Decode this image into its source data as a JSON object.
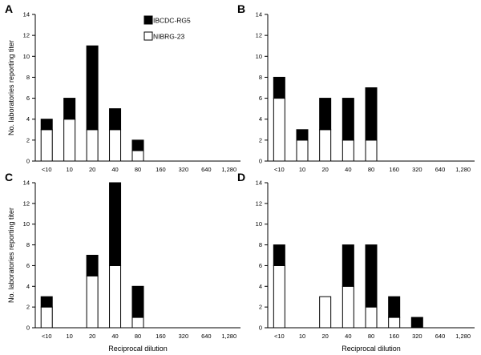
{
  "chart_data": [
    {
      "type": "bar",
      "panel": "A",
      "categories": [
        "<10",
        "10",
        "20",
        "40",
        "80",
        "160",
        "320",
        "640",
        "1,280"
      ],
      "series": [
        {
          "name": "NIBRG-23",
          "color": "#ffffff",
          "values": [
            3,
            4,
            3,
            3,
            1,
            0,
            0,
            0,
            0
          ]
        },
        {
          "name": "IBCDC-RG5",
          "color": "#000000",
          "values": [
            1,
            2,
            8,
            2,
            1,
            0,
            0,
            0,
            0
          ]
        }
      ],
      "ylabel": "No. laboratories reporting titer",
      "xlabel": "",
      "ylim": [
        0,
        14
      ],
      "yticks": [
        0,
        2,
        4,
        6,
        8,
        10,
        12,
        14
      ],
      "legend": "top-center"
    },
    {
      "type": "bar",
      "panel": "B",
      "categories": [
        "<10",
        "10",
        "20",
        "40",
        "80",
        "160",
        "320",
        "640",
        "1,280"
      ],
      "series": [
        {
          "name": "NIBRG-23",
          "color": "#ffffff",
          "values": [
            6,
            2,
            3,
            2,
            2,
            0,
            0,
            0,
            0
          ]
        },
        {
          "name": "IBCDC-RG5",
          "color": "#000000",
          "values": [
            2,
            1,
            3,
            4,
            5,
            0,
            0,
            0,
            0
          ]
        }
      ],
      "ylabel": "",
      "xlabel": "",
      "ylim": [
        0,
        14
      ],
      "yticks": [
        0,
        2,
        4,
        6,
        8,
        10,
        12,
        14
      ]
    },
    {
      "type": "bar",
      "panel": "C",
      "categories": [
        "<10",
        "10",
        "20",
        "40",
        "80",
        "160",
        "320",
        "640",
        "1,280"
      ],
      "series": [
        {
          "name": "NIBRG-23",
          "color": "#ffffff",
          "values": [
            2,
            0,
            5,
            6,
            1,
            0,
            0,
            0,
            0
          ]
        },
        {
          "name": "IBCDC-RG5",
          "color": "#000000",
          "values": [
            1,
            0,
            2,
            8,
            3,
            0,
            0,
            0,
            0
          ]
        }
      ],
      "ylabel": "No. laboratories reporting titer",
      "xlabel": "Reciprocal dilution",
      "ylim": [
        0,
        14
      ],
      "yticks": [
        0,
        2,
        4,
        6,
        8,
        10,
        12,
        14
      ]
    },
    {
      "type": "bar",
      "panel": "D",
      "categories": [
        "<10",
        "10",
        "20",
        "40",
        "80",
        "160",
        "320",
        "640",
        "1,280"
      ],
      "series": [
        {
          "name": "NIBRG-23",
          "color": "#ffffff",
          "values": [
            6,
            0,
            3,
            4,
            2,
            1,
            0,
            0,
            0
          ]
        },
        {
          "name": "IBCDC-RG5",
          "color": "#000000",
          "values": [
            2,
            0,
            0,
            4,
            6,
            2,
            1,
            0,
            0
          ]
        }
      ],
      "ylabel": "",
      "xlabel": "Reciprocal dilution",
      "ylim": [
        0,
        14
      ],
      "yticks": [
        0,
        2,
        4,
        6,
        8,
        10,
        12,
        14
      ]
    }
  ],
  "legend": {
    "entries": [
      {
        "label": "IBCDC-RG5",
        "color": "#000000"
      },
      {
        "label": "NIBRG-23",
        "color": "#ffffff"
      }
    ]
  }
}
